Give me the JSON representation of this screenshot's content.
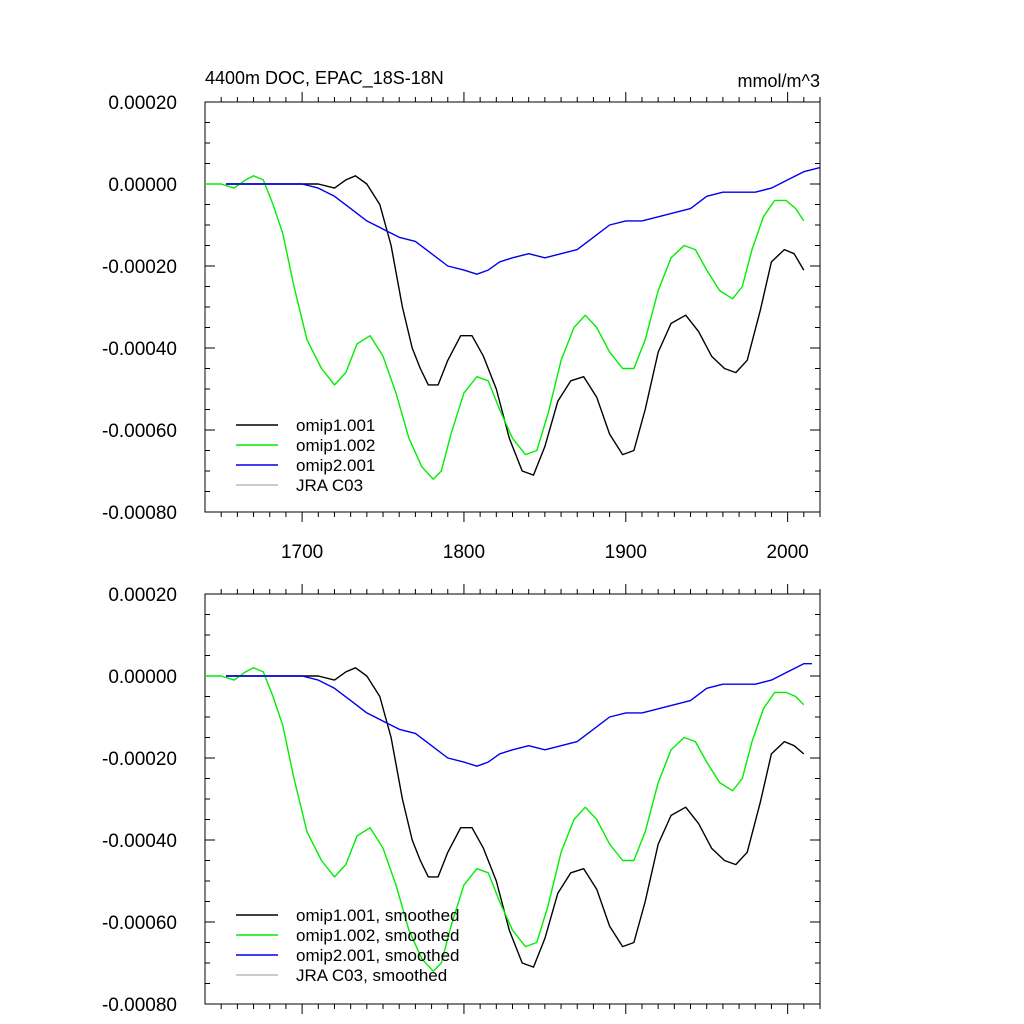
{
  "chart_data": [
    {
      "type": "line",
      "title": "4400m DOC, EPAC_18S-18N",
      "units": "mmol/m^3",
      "xlim": [
        1640,
        2020
      ],
      "ylim": [
        -0.0008,
        0.0002
      ],
      "xticks": [
        1700,
        1800,
        1900,
        2000
      ],
      "xtick_labels": [
        "1700",
        "1800",
        "1900",
        "2000"
      ],
      "yticks": [
        0.0002,
        0.0,
        -0.0002,
        -0.0004,
        -0.0006,
        -0.0008
      ],
      "ytick_labels": [
        "0.00020",
        "0.00000",
        "-0.00020",
        "-0.00040",
        "-0.00060",
        "-0.00080"
      ],
      "legend_position": "bottom-left",
      "series": [
        {
          "name": "omip1.001",
          "color": "#000000",
          "x": [
            1653,
            1670,
            1690,
            1710,
            1720,
            1727,
            1733,
            1740,
            1748,
            1755,
            1762,
            1768,
            1773,
            1778,
            1784,
            1790,
            1798,
            1805,
            1812,
            1820,
            1828,
            1836,
            1843,
            1850,
            1858,
            1866,
            1874,
            1882,
            1890,
            1898,
            1905,
            1912,
            1920,
            1928,
            1937,
            1945,
            1953,
            1961,
            1968,
            1975,
            1983,
            1990,
            1998,
            2004,
            2010
          ],
          "y": [
            0.0,
            0.0,
            0.0,
            0.0,
            -1e-05,
            1e-05,
            2e-05,
            0.0,
            -5e-05,
            -0.00015,
            -0.0003,
            -0.0004,
            -0.00045,
            -0.00049,
            -0.00049,
            -0.00043,
            -0.00037,
            -0.00037,
            -0.00042,
            -0.0005,
            -0.00062,
            -0.0007,
            -0.00071,
            -0.00064,
            -0.00053,
            -0.00048,
            -0.00047,
            -0.00052,
            -0.00061,
            -0.00066,
            -0.00065,
            -0.00055,
            -0.00041,
            -0.00034,
            -0.00032,
            -0.00036,
            -0.00042,
            -0.00045,
            -0.00046,
            -0.00043,
            -0.00031,
            -0.00019,
            -0.00016,
            -0.00017,
            -0.00021
          ]
        },
        {
          "name": "omip1.002",
          "color": "#00ee00",
          "x": [
            1640,
            1650,
            1658,
            1665,
            1670,
            1676,
            1682,
            1688,
            1695,
            1703,
            1712,
            1720,
            1727,
            1734,
            1742,
            1750,
            1758,
            1766,
            1774,
            1781,
            1786,
            1792,
            1800,
            1808,
            1815,
            1822,
            1830,
            1838,
            1845,
            1852,
            1860,
            1868,
            1875,
            1882,
            1890,
            1898,
            1905,
            1912,
            1920,
            1928,
            1936,
            1943,
            1950,
            1958,
            1966,
            1972,
            1978,
            1985,
            1992,
            1999,
            2005,
            2010
          ],
          "y": [
            0.0,
            0.0,
            -1e-05,
            1e-05,
            2e-05,
            1e-05,
            -5e-05,
            -0.00012,
            -0.00025,
            -0.00038,
            -0.00045,
            -0.00049,
            -0.00046,
            -0.00039,
            -0.00037,
            -0.00042,
            -0.00051,
            -0.00062,
            -0.00069,
            -0.00072,
            -0.0007,
            -0.00061,
            -0.00051,
            -0.00047,
            -0.00048,
            -0.00055,
            -0.00062,
            -0.00066,
            -0.00065,
            -0.00056,
            -0.00043,
            -0.00035,
            -0.00032,
            -0.00035,
            -0.00041,
            -0.00045,
            -0.00045,
            -0.00038,
            -0.00026,
            -0.00018,
            -0.00015,
            -0.00016,
            -0.00021,
            -0.00026,
            -0.00028,
            -0.00025,
            -0.00016,
            -8e-05,
            -4e-05,
            -4e-05,
            -6e-05,
            -9e-05
          ]
        },
        {
          "name": "omip2.001",
          "color": "#0000ee",
          "x": [
            1653,
            1665,
            1680,
            1692,
            1700,
            1710,
            1720,
            1730,
            1740,
            1750,
            1760,
            1770,
            1780,
            1790,
            1800,
            1808,
            1815,
            1822,
            1830,
            1840,
            1850,
            1860,
            1870,
            1880,
            1890,
            1900,
            1910,
            1920,
            1930,
            1940,
            1950,
            1960,
            1970,
            1980,
            1990,
            2000,
            2010,
            2020
          ],
          "y": [
            0.0,
            0.0,
            0.0,
            0.0,
            0.0,
            -1e-05,
            -3e-05,
            -6e-05,
            -9e-05,
            -0.00011,
            -0.00013,
            -0.00014,
            -0.00017,
            -0.0002,
            -0.00021,
            -0.00022,
            -0.00021,
            -0.00019,
            -0.00018,
            -0.00017,
            -0.00018,
            -0.00017,
            -0.00016,
            -0.00013,
            -0.0001,
            -9e-05,
            -9e-05,
            -8e-05,
            -7e-05,
            -6e-05,
            -3e-05,
            -2e-05,
            -2e-05,
            -2e-05,
            -1e-05,
            1e-05,
            3e-05,
            4e-05
          ]
        },
        {
          "name": "JRA C03",
          "color": "#bbbbbb",
          "x": [],
          "y": []
        }
      ]
    },
    {
      "type": "line",
      "xlim": [
        1640,
        2020
      ],
      "ylim": [
        -0.0008,
        0.0002
      ],
      "xticks": [
        1700,
        1800,
        1900,
        2000
      ],
      "yticks": [
        0.0002,
        0.0,
        -0.0002,
        -0.0004,
        -0.0006,
        -0.0008
      ],
      "ytick_labels": [
        "0.00020",
        "0.00000",
        "-0.00020",
        "-0.00040",
        "-0.00060",
        "-0.00080"
      ],
      "legend_position": "bottom-left",
      "series": [
        {
          "name": "omip1.001, smoothed",
          "color": "#000000",
          "x": [
            1653,
            1670,
            1690,
            1710,
            1720,
            1727,
            1733,
            1740,
            1748,
            1755,
            1762,
            1768,
            1773,
            1778,
            1784,
            1790,
            1798,
            1805,
            1812,
            1820,
            1828,
            1836,
            1843,
            1850,
            1858,
            1866,
            1874,
            1882,
            1890,
            1898,
            1905,
            1912,
            1920,
            1928,
            1937,
            1945,
            1953,
            1961,
            1968,
            1975,
            1983,
            1990,
            1998,
            2004,
            2010
          ],
          "y": [
            0.0,
            0.0,
            0.0,
            0.0,
            -1e-05,
            1e-05,
            2e-05,
            0.0,
            -5e-05,
            -0.00015,
            -0.0003,
            -0.0004,
            -0.00045,
            -0.00049,
            -0.00049,
            -0.00043,
            -0.00037,
            -0.00037,
            -0.00042,
            -0.0005,
            -0.00062,
            -0.0007,
            -0.00071,
            -0.00064,
            -0.00053,
            -0.00048,
            -0.00047,
            -0.00052,
            -0.00061,
            -0.00066,
            -0.00065,
            -0.00055,
            -0.00041,
            -0.00034,
            -0.00032,
            -0.00036,
            -0.00042,
            -0.00045,
            -0.00046,
            -0.00043,
            -0.00031,
            -0.00019,
            -0.00016,
            -0.00017,
            -0.00019
          ]
        },
        {
          "name": "omip1.002, smoothed",
          "color": "#00ee00",
          "x": [
            1640,
            1650,
            1658,
            1665,
            1670,
            1676,
            1682,
            1688,
            1695,
            1703,
            1712,
            1720,
            1727,
            1734,
            1742,
            1750,
            1758,
            1766,
            1774,
            1781,
            1786,
            1792,
            1800,
            1808,
            1815,
            1822,
            1830,
            1838,
            1845,
            1852,
            1860,
            1868,
            1875,
            1882,
            1890,
            1898,
            1905,
            1912,
            1920,
            1928,
            1936,
            1943,
            1950,
            1958,
            1966,
            1972,
            1978,
            1985,
            1992,
            1999,
            2005,
            2010
          ],
          "y": [
            0.0,
            0.0,
            -1e-05,
            1e-05,
            2e-05,
            1e-05,
            -5e-05,
            -0.00012,
            -0.00025,
            -0.00038,
            -0.00045,
            -0.00049,
            -0.00046,
            -0.00039,
            -0.00037,
            -0.00042,
            -0.00051,
            -0.00062,
            -0.00069,
            -0.00072,
            -0.0007,
            -0.00061,
            -0.00051,
            -0.00047,
            -0.00048,
            -0.00055,
            -0.00062,
            -0.00066,
            -0.00065,
            -0.00056,
            -0.00043,
            -0.00035,
            -0.00032,
            -0.00035,
            -0.00041,
            -0.00045,
            -0.00045,
            -0.00038,
            -0.00026,
            -0.00018,
            -0.00015,
            -0.00016,
            -0.00021,
            -0.00026,
            -0.00028,
            -0.00025,
            -0.00016,
            -8e-05,
            -4e-05,
            -4e-05,
            -5e-05,
            -7e-05
          ]
        },
        {
          "name": "omip2.001, smoothed",
          "color": "#0000ee",
          "x": [
            1653,
            1665,
            1680,
            1692,
            1700,
            1710,
            1720,
            1730,
            1740,
            1750,
            1760,
            1770,
            1780,
            1790,
            1800,
            1808,
            1815,
            1822,
            1830,
            1840,
            1850,
            1860,
            1870,
            1880,
            1890,
            1900,
            1910,
            1920,
            1930,
            1940,
            1950,
            1960,
            1970,
            1980,
            1990,
            2000,
            2010,
            2015
          ],
          "y": [
            0.0,
            0.0,
            0.0,
            0.0,
            0.0,
            -1e-05,
            -3e-05,
            -6e-05,
            -9e-05,
            -0.00011,
            -0.00013,
            -0.00014,
            -0.00017,
            -0.0002,
            -0.00021,
            -0.00022,
            -0.00021,
            -0.00019,
            -0.00018,
            -0.00017,
            -0.00018,
            -0.00017,
            -0.00016,
            -0.00013,
            -0.0001,
            -9e-05,
            -9e-05,
            -8e-05,
            -7e-05,
            -6e-05,
            -3e-05,
            -2e-05,
            -2e-05,
            -2e-05,
            -1e-05,
            1e-05,
            3e-05,
            3e-05
          ]
        },
        {
          "name": "JRA C03, smoothed",
          "color": "#bbbbbb",
          "x": [],
          "y": []
        }
      ]
    }
  ]
}
